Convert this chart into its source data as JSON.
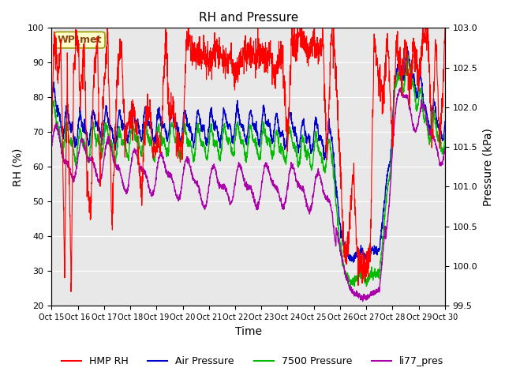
{
  "title": "RH and Pressure",
  "xlabel": "Time",
  "ylabel_left": "RH (%)",
  "ylabel_right": "Pressure (kPa)",
  "ylim_left": [
    20,
    100
  ],
  "ylim_right": [
    99.5,
    103.0
  ],
  "xtick_labels": [
    "Oct 15",
    "Oct 16",
    "Oct 17",
    "Oct 18",
    "Oct 19",
    "Oct 20",
    "Oct 21",
    "Oct 22",
    "Oct 23",
    "Oct 24",
    "Oct 25",
    "Oct 26",
    "Oct 27",
    "Oct 28",
    "Oct 29",
    "Oct 30"
  ],
  "station_label": "WP_met",
  "background_color": "#e8e8e8",
  "title_fontsize": 11,
  "legend_colors": {
    "HMP RH": "#ff0000",
    "Air Pressure": "#0000cc",
    "7500 Pressure": "#00bb00",
    "li77_pres": "#aa00aa"
  },
  "rh_key_x": [
    0,
    0.1,
    0.25,
    0.35,
    0.5,
    0.6,
    0.75,
    0.85,
    1.0,
    1.1,
    1.25,
    1.35,
    1.5,
    1.6,
    1.75,
    1.85,
    2.0,
    2.15,
    2.3,
    2.5,
    2.65,
    2.8,
    3.0,
    3.15,
    3.3,
    3.45,
    3.5,
    3.6,
    3.75,
    3.85,
    4.0,
    4.15,
    4.35,
    4.5,
    4.65,
    4.8,
    5.0,
    5.15,
    5.35,
    5.5,
    5.65,
    5.8,
    6.0,
    6.15,
    6.35,
    6.5,
    6.65,
    6.8,
    7.0,
    7.15,
    7.3,
    7.5,
    7.65,
    7.8,
    8.0,
    8.15,
    8.35,
    8.5,
    8.65,
    8.8,
    9.0,
    9.15,
    9.35,
    9.5,
    9.65,
    9.8,
    10.0,
    10.15,
    10.35,
    10.5,
    10.65,
    10.8,
    11.0,
    11.15,
    11.3,
    11.5,
    11.65,
    11.8,
    12.0,
    12.15,
    12.3,
    12.5,
    12.65,
    12.8,
    13.0,
    13.15,
    13.35,
    13.5,
    13.65,
    13.8,
    14.0,
    14.15,
    14.35,
    14.5,
    14.65,
    14.8,
    15.0
  ],
  "rh_key_y": [
    70,
    97,
    85,
    97,
    30,
    88,
    26,
    90,
    97,
    78,
    97,
    55,
    46,
    85,
    97,
    58,
    84,
    97,
    42,
    85,
    97,
    68,
    75,
    76,
    65,
    50,
    65,
    75,
    76,
    65,
    68,
    65,
    97,
    74,
    76,
    65,
    67,
    97,
    94,
    93,
    92,
    93,
    90,
    93,
    94,
    92,
    90,
    93,
    85,
    90,
    93,
    92,
    93,
    94,
    92,
    90,
    93,
    85,
    90,
    93,
    65,
    97,
    95,
    98,
    97,
    93,
    97,
    93,
    97,
    60,
    97,
    93,
    60,
    35,
    35,
    60,
    35,
    30,
    32,
    35,
    97,
    85,
    80,
    97,
    68,
    97,
    85,
    97,
    80,
    97,
    85,
    97,
    100,
    65,
    97,
    65,
    97
  ],
  "ap_key_x": [
    0,
    0.5,
    1.0,
    1.5,
    2.0,
    2.5,
    3.0,
    3.5,
    4.0,
    4.5,
    5.0,
    5.5,
    6.0,
    6.5,
    7.0,
    7.5,
    8.0,
    8.3,
    8.5,
    8.7,
    9.0,
    9.3,
    9.5,
    9.7,
    10.0,
    10.3,
    10.5,
    10.7,
    11.0,
    11.2,
    11.4,
    11.5,
    11.6,
    11.8,
    12.0,
    12.2,
    12.5,
    13.0,
    13.2,
    13.5,
    13.8,
    14.0,
    14.2,
    14.5,
    14.8,
    15.0
  ],
  "ap_key_y": [
    102.1,
    101.8,
    101.7,
    101.75,
    101.8,
    101.7,
    101.8,
    101.8,
    101.75,
    101.8,
    101.75,
    101.75,
    101.75,
    101.75,
    101.8,
    101.75,
    101.75,
    101.8,
    101.75,
    101.65,
    101.75,
    101.7,
    101.65,
    101.6,
    101.65,
    101.6,
    101.6,
    101.55,
    100.5,
    100.2,
    100.1,
    100.1,
    100.15,
    100.2,
    100.1,
    100.2,
    100.2,
    101.8,
    102.5,
    102.55,
    102.4,
    102.3,
    102.0,
    101.9,
    101.75,
    101.8
  ],
  "p7500_key_x": [
    0,
    0.5,
    1.0,
    1.5,
    2.0,
    2.5,
    3.0,
    3.5,
    4.0,
    4.5,
    5.0,
    5.5,
    6.0,
    6.5,
    7.0,
    7.5,
    8.0,
    8.3,
    8.5,
    8.7,
    9.0,
    9.3,
    9.5,
    9.7,
    10.0,
    10.3,
    10.5,
    10.7,
    11.0,
    11.2,
    11.4,
    11.5,
    11.6,
    11.8,
    12.0,
    12.2,
    12.5,
    13.0,
    13.2,
    13.5,
    13.8,
    14.0,
    14.2,
    14.5,
    14.8,
    15.0
  ],
  "p7500_key_y": [
    101.9,
    101.6,
    101.5,
    101.55,
    101.6,
    101.5,
    101.6,
    101.6,
    101.55,
    101.6,
    101.55,
    101.55,
    101.55,
    101.55,
    101.6,
    101.55,
    101.55,
    101.6,
    101.55,
    101.45,
    101.55,
    101.5,
    101.45,
    101.4,
    101.45,
    101.4,
    101.4,
    101.35,
    100.25,
    99.9,
    99.8,
    99.8,
    99.85,
    99.9,
    99.8,
    99.9,
    99.9,
    101.7,
    102.4,
    102.45,
    102.3,
    102.1,
    101.85,
    101.75,
    101.6,
    101.65
  ],
  "li77_key_x": [
    0,
    0.3,
    0.5,
    0.7,
    1.0,
    1.3,
    1.5,
    1.7,
    2.0,
    2.3,
    2.5,
    2.7,
    3.0,
    3.3,
    3.5,
    3.7,
    4.0,
    4.3,
    4.5,
    4.7,
    5.0,
    5.3,
    5.5,
    5.7,
    6.0,
    6.3,
    6.5,
    6.7,
    7.0,
    7.3,
    7.5,
    7.7,
    8.0,
    8.3,
    8.5,
    8.7,
    9.0,
    9.3,
    9.5,
    9.7,
    10.0,
    10.3,
    10.5,
    10.7,
    11.0,
    11.2,
    11.4,
    11.6,
    11.8,
    12.0,
    12.2,
    12.5,
    13.0,
    13.3,
    13.5,
    13.8,
    14.0,
    14.3,
    14.5,
    14.8,
    15.0
  ],
  "li77_key_y": [
    101.5,
    101.5,
    101.3,
    101.35,
    101.35,
    101.3,
    101.35,
    101.3,
    101.35,
    101.3,
    101.25,
    101.2,
    101.2,
    101.2,
    101.2,
    101.15,
    101.15,
    101.15,
    101.15,
    101.1,
    101.1,
    101.1,
    101.05,
    101.0,
    101.0,
    101.0,
    101.0,
    101.05,
    101.05,
    101.0,
    101.0,
    101.0,
    101.0,
    101.05,
    101.0,
    101.0,
    101.0,
    101.0,
    101.0,
    100.95,
    100.95,
    100.9,
    100.85,
    100.8,
    100.2,
    99.9,
    99.7,
    99.65,
    99.6,
    99.6,
    99.65,
    99.7,
    101.5,
    102.1,
    102.15,
    102.0,
    101.85,
    101.7,
    101.65,
    101.55,
    101.5
  ]
}
